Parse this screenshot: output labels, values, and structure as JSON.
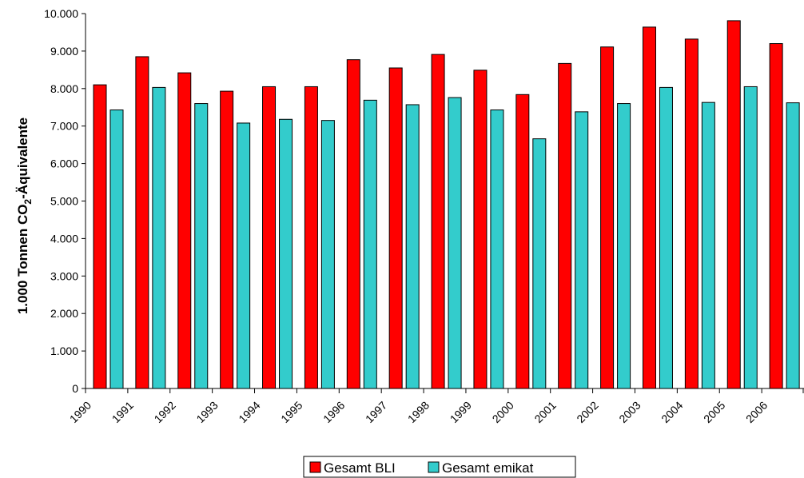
{
  "chart_data": {
    "type": "bar",
    "title": "",
    "xlabel": "",
    "ylabel": {
      "main": "1.000 Tonnen CO",
      "sub": "2",
      "tail": "-Äquivalente"
    },
    "ylim": [
      0,
      10000
    ],
    "yticks": [
      {
        "value": 0,
        "label": "0"
      },
      {
        "value": 1000,
        "label": "1.000"
      },
      {
        "value": 2000,
        "label": "2.000"
      },
      {
        "value": 3000,
        "label": "3.000"
      },
      {
        "value": 4000,
        "label": "4.000"
      },
      {
        "value": 5000,
        "label": "5.000"
      },
      {
        "value": 6000,
        "label": "6.000"
      },
      {
        "value": 7000,
        "label": "7.000"
      },
      {
        "value": 8000,
        "label": "8.000"
      },
      {
        "value": 9000,
        "label": "9.000"
      },
      {
        "value": 10000,
        "label": "10.000"
      }
    ],
    "categories": [
      "1990",
      "1991",
      "1992",
      "1993",
      "1994",
      "1995",
      "1996",
      "1997",
      "1998",
      "1999",
      "2000",
      "2001",
      "2002",
      "2003",
      "2004",
      "2005",
      "2006"
    ],
    "series": [
      {
        "name": "Gesamt BLI",
        "color": "#ff0000",
        "values": [
          8100,
          8850,
          8420,
          7930,
          8050,
          8050,
          8770,
          8550,
          8910,
          8490,
          7840,
          8670,
          9110,
          9640,
          9320,
          9810,
          9200
        ]
      },
      {
        "name": "Gesamt emikat",
        "color": "#33cccc",
        "values": [
          7430,
          8030,
          7600,
          7080,
          7180,
          7150,
          7690,
          7570,
          7760,
          7430,
          6660,
          7380,
          7600,
          8030,
          7630,
          8050,
          7620
        ]
      }
    ],
    "grid": false,
    "legend": "bottom"
  }
}
